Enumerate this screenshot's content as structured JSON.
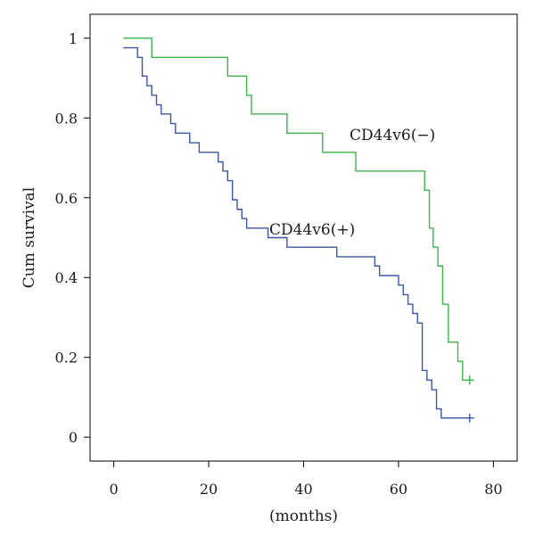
{
  "chart_data": {
    "type": "line",
    "subtype": "kaplan-meier-step",
    "xlabel": "(months)",
    "ylabel": "Cum survival",
    "xlim": [
      -5,
      85
    ],
    "ylim": [
      -0.06,
      1.06
    ],
    "xticks": [
      0,
      20,
      40,
      60,
      80
    ],
    "yticks": [
      0,
      0.2,
      0.4,
      0.6,
      0.8,
      1
    ],
    "xtick_labels": [
      "0",
      "20",
      "40",
      "60",
      "80"
    ],
    "ytick_labels": [
      "0",
      "0.2",
      "0.4",
      "0.6",
      "0.8",
      "1"
    ],
    "series": [
      {
        "name": "CD44v6(−)",
        "label": "CD44v6(−)",
        "color": "#3cb44b",
        "censor_mark": {
          "x": 75,
          "y": 0.143
        },
        "steps": [
          [
            2,
            1.0
          ],
          [
            8,
            0.952
          ],
          [
            24,
            0.905
          ],
          [
            28,
            0.857
          ],
          [
            29,
            0.81
          ],
          [
            36.5,
            0.762
          ],
          [
            44,
            0.714
          ],
          [
            51,
            0.667
          ],
          [
            65.5,
            0.619
          ],
          [
            66.5,
            0.524
          ],
          [
            67.3,
            0.476
          ],
          [
            68.3,
            0.429
          ],
          [
            69.3,
            0.333
          ],
          [
            70.5,
            0.238
          ],
          [
            72.5,
            0.19
          ],
          [
            73.5,
            0.143
          ],
          [
            75,
            0.143
          ]
        ]
      },
      {
        "name": "CD44v6(+)",
        "label": "CD44v6(+)",
        "color": "#3a57a5",
        "censor_mark": {
          "x": 75,
          "y": 0.048
        },
        "steps": [
          [
            2,
            0.976
          ],
          [
            5,
            0.952
          ],
          [
            6,
            0.905
          ],
          [
            7,
            0.881
          ],
          [
            8,
            0.857
          ],
          [
            9,
            0.833
          ],
          [
            10,
            0.81
          ],
          [
            12,
            0.786
          ],
          [
            13,
            0.762
          ],
          [
            16,
            0.738
          ],
          [
            18,
            0.714
          ],
          [
            22,
            0.69
          ],
          [
            23,
            0.667
          ],
          [
            24,
            0.643
          ],
          [
            25,
            0.595
          ],
          [
            26,
            0.571
          ],
          [
            27,
            0.548
          ],
          [
            28,
            0.524
          ],
          [
            32.5,
            0.5
          ],
          [
            36.5,
            0.476
          ],
          [
            47,
            0.452
          ],
          [
            55,
            0.429
          ],
          [
            56,
            0.405
          ],
          [
            60,
            0.381
          ],
          [
            61,
            0.357
          ],
          [
            62,
            0.333
          ],
          [
            63,
            0.31
          ],
          [
            64,
            0.286
          ],
          [
            65,
            0.167
          ],
          [
            66,
            0.143
          ],
          [
            67,
            0.119
          ],
          [
            68,
            0.071
          ],
          [
            69,
            0.048
          ],
          [
            75,
            0.048
          ]
        ]
      }
    ]
  }
}
